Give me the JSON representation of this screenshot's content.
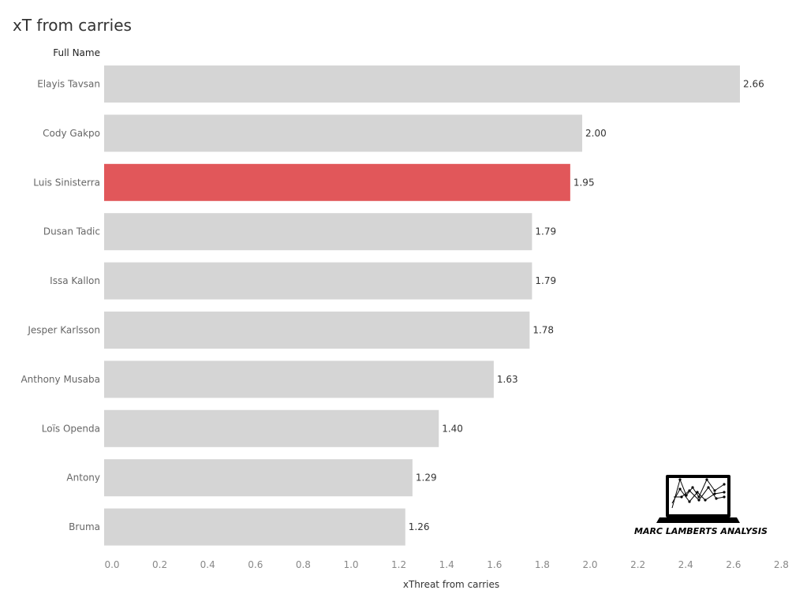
{
  "title": "xT from carries",
  "logo": {
    "text": "MARC LAMBERTS ANALYSIS",
    "icon": "laptop-chart-icon"
  },
  "colors": {
    "default_bar": "#d5d5d5",
    "highlight_bar": "#e1575a"
  },
  "chart_data": {
    "type": "bar",
    "orientation": "horizontal",
    "title": "xT from carries",
    "row_header": "Full Name",
    "xlabel": "xThreat from carries",
    "xlim": [
      0,
      2.8
    ],
    "xticks": [
      "0.0",
      "0.2",
      "0.4",
      "0.6",
      "0.8",
      "1.0",
      "1.2",
      "1.4",
      "1.6",
      "1.8",
      "2.0",
      "2.2",
      "2.4",
      "2.6",
      "2.8"
    ],
    "categories": [
      "Elayis Tavsan",
      "Cody Gakpo",
      "Luis Sinisterra",
      "Dusan Tadic",
      "Issa Kallon",
      "Jesper Karlsson",
      "Anthony Musaba",
      "Loïs Openda",
      "Antony",
      "Bruma"
    ],
    "values": [
      2.66,
      2.0,
      1.95,
      1.79,
      1.79,
      1.78,
      1.63,
      1.4,
      1.29,
      1.26
    ],
    "value_labels": [
      "2.66",
      "2.00",
      "1.95",
      "1.79",
      "1.79",
      "1.78",
      "1.63",
      "1.40",
      "1.29",
      "1.26"
    ],
    "highlight": "Luis Sinisterra",
    "grid": false,
    "legend": "none"
  }
}
